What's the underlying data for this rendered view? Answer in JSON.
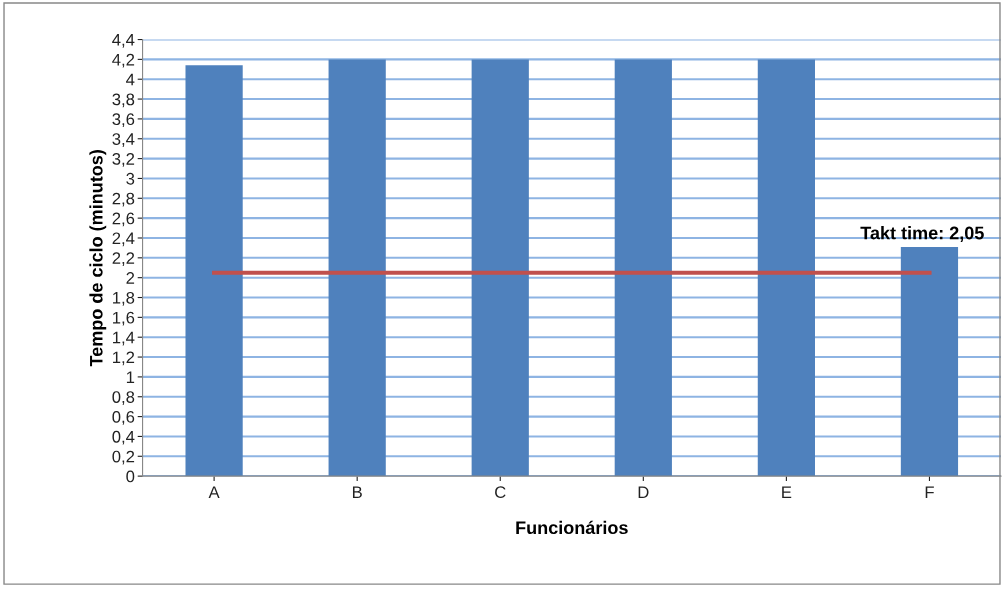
{
  "chart_data": {
    "type": "bar",
    "xlabel": "Funcionários",
    "ylabel": "Tempo de ciclo (minutos)",
    "categories": [
      "A",
      "B",
      "C",
      "D",
      "E",
      "F"
    ],
    "values": [
      4.14,
      4.2,
      4.2,
      4.2,
      4.2,
      2.31
    ],
    "color": "#4f81bd",
    "ylim": [
      0,
      4.4
    ],
    "yticks": [
      0,
      {
        "value": 0.2,
        "label": "0,2"
      },
      {
        "value": 0.4,
        "label": "0,4"
      },
      {
        "value": 0.6,
        "label": "0,6"
      },
      {
        "value": 0.8,
        "label": "0,8"
      },
      1,
      {
        "value": 1.2,
        "label": "1,2"
      },
      {
        "value": 1.4,
        "label": "1,4"
      },
      {
        "value": 1.6,
        "label": "1,6"
      },
      {
        "value": 1.8,
        "label": "1,8"
      },
      2,
      {
        "value": 2.2,
        "label": "2,2"
      },
      {
        "value": 2.4,
        "label": "2,4"
      },
      {
        "value": 2.6,
        "label": "2,6"
      },
      {
        "value": 2.8,
        "label": "2,8"
      },
      3,
      {
        "value": 3.2,
        "label": "3,2"
      },
      {
        "value": 3.4,
        "label": "3,4"
      },
      {
        "value": 3.6,
        "label": "3,6"
      },
      {
        "value": 3.8,
        "label": "3,8"
      },
      4,
      {
        "value": 4.2,
        "label": "4,2"
      },
      {
        "value": 4.4,
        "label": "4,4"
      }
    ],
    "grid": "y",
    "ref_lines": [
      {
        "axis": "y",
        "value": 2.05,
        "label": "Takt time: 2,05",
        "color": "#c0504d"
      }
    ]
  }
}
